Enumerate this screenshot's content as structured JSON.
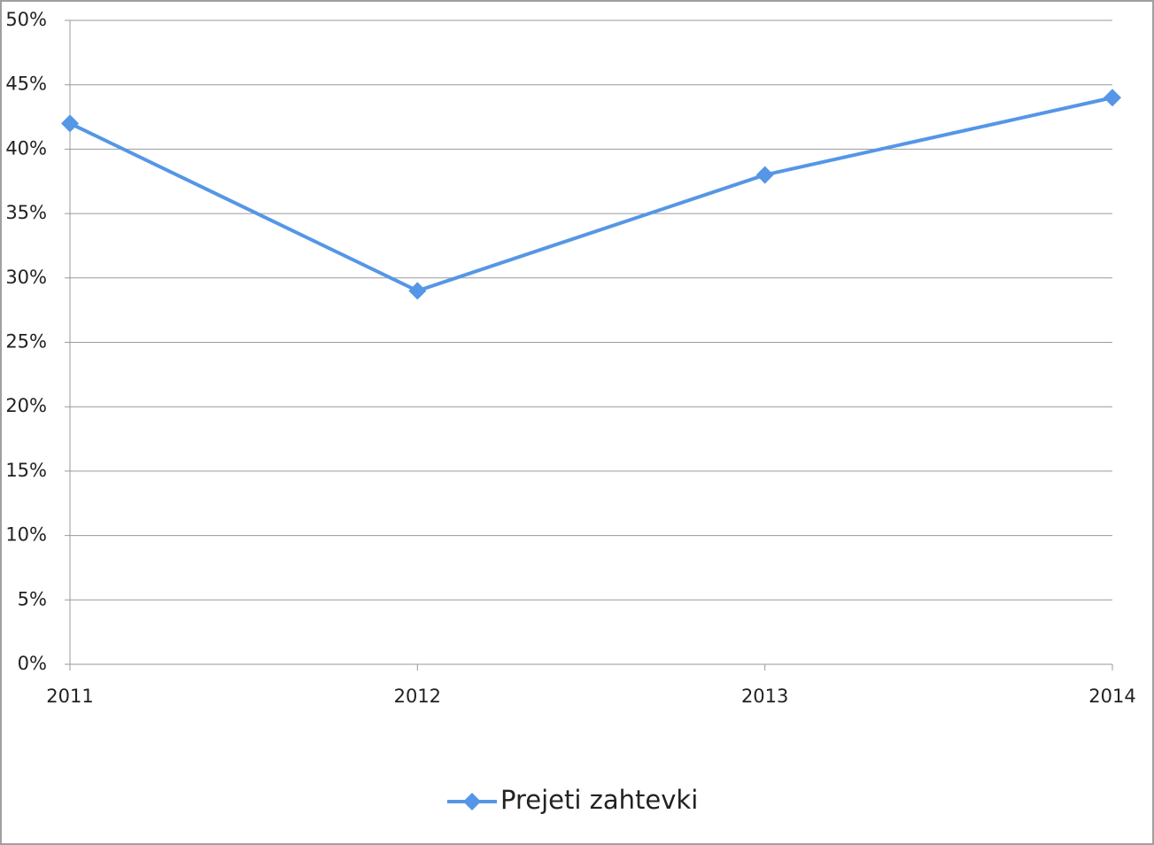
{
  "chart_data": {
    "type": "line",
    "x": [
      2011,
      2012,
      2013,
      2014
    ],
    "xlim": [
      2011,
      2014
    ],
    "xticks": [
      2011,
      2012,
      2013,
      2014
    ],
    "ylim": [
      0,
      50
    ],
    "yticks": [
      {
        "value": 0,
        "label": "0%"
      },
      {
        "value": 5,
        "label": "5%"
      },
      {
        "value": 10,
        "label": "10%"
      },
      {
        "value": 15,
        "label": "15%"
      },
      {
        "value": 20,
        "label": "20%"
      },
      {
        "value": 25,
        "label": "25%"
      },
      {
        "value": 30,
        "label": "30%"
      },
      {
        "value": 35,
        "label": "35%"
      },
      {
        "value": 40,
        "label": "40%"
      },
      {
        "value": 45,
        "label": "45%"
      },
      {
        "value": 50,
        "label": "50%"
      }
    ],
    "grid": true,
    "legend": "bottom",
    "series": [
      {
        "name": "Prejeti zahtevki",
        "color": "#5596e6",
        "values": [
          42,
          29,
          38,
          44
        ]
      }
    ]
  }
}
